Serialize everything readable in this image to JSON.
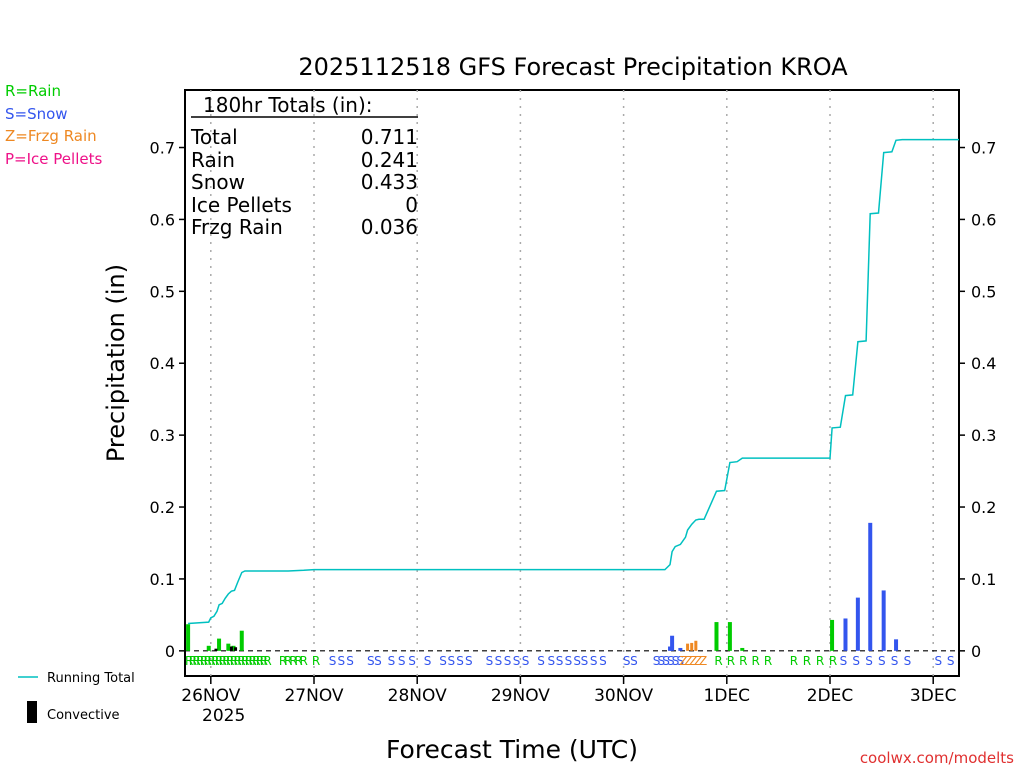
{
  "chart_data": {
    "type": "bar",
    "title": "2025112518 GFS Forecast Precipitation KROA",
    "xlabel": "Forecast Time (UTC)",
    "ylabel": "Precipitation (in)",
    "ylim": [
      -0.035,
      0.78
    ],
    "yticks": [
      0,
      0.1,
      0.2,
      0.3,
      0.4,
      0.5,
      0.6,
      0.7
    ],
    "ytick_labels": [
      "0",
      "0.1",
      "0.2",
      "0.3",
      "0.4",
      "0.5",
      "0.6",
      "0.7"
    ],
    "x_unit": "days since 26NOV 00Z",
    "xlim": [
      -0.25,
      7.25
    ],
    "x_ticks": [
      {
        "x": 0,
        "label": "26NOV"
      },
      {
        "x": 1,
        "label": "27NOV"
      },
      {
        "x": 2,
        "label": "28NOV"
      },
      {
        "x": 3,
        "label": "29NOV"
      },
      {
        "x": 4,
        "label": "30NOV"
      },
      {
        "x": 5,
        "label": "1DEC"
      },
      {
        "x": 6,
        "label": "2DEC"
      },
      {
        "x": 7,
        "label": "3DEC"
      }
    ],
    "year_label": "2025",
    "legend": [
      {
        "label": "R=Rain",
        "color": "#00cc00"
      },
      {
        "label": "S=Snow",
        "color": "#3355ee"
      },
      {
        "label": "Z=Frzg Rain",
        "color": "#ee8822"
      },
      {
        "label": "P=Ice Pellets",
        "color": "#ee1188"
      }
    ],
    "bottom_legend": [
      {
        "label": "Running Total",
        "color": "#00c0c0"
      },
      {
        "label": "Convective",
        "color": "#000000"
      }
    ],
    "totals": {
      "header": "180hr Totals (in):",
      "rows": [
        {
          "label": "Total",
          "value": "0.711"
        },
        {
          "label": "Rain",
          "value": "0.241"
        },
        {
          "label": "Snow",
          "value": "0.433"
        },
        {
          "label": "Ice Pellets",
          "value": "0"
        },
        {
          "label": "Frzg Rain",
          "value": "0.036"
        }
      ]
    },
    "bars": [
      {
        "x": -0.22,
        "value": 0.037,
        "ptype": "rain"
      },
      {
        "x": -0.02,
        "value": 0.007,
        "ptype": "rain"
      },
      {
        "x": 0.08,
        "value": 0.017,
        "ptype": "rain"
      },
      {
        "x": 0.17,
        "value": 0.01,
        "ptype": "rain"
      },
      {
        "x": 0.22,
        "value": 0.007,
        "ptype": "rain"
      },
      {
        "x": 0.3,
        "value": 0.028,
        "ptype": "rain"
      },
      {
        "x": 4.45,
        "value": 0.006,
        "ptype": "snow"
      },
      {
        "x": 4.47,
        "value": 0.021,
        "ptype": "snow"
      },
      {
        "x": 4.55,
        "value": 0.004,
        "ptype": "snow"
      },
      {
        "x": 4.62,
        "value": 0.01,
        "ptype": "frzg"
      },
      {
        "x": 4.66,
        "value": 0.011,
        "ptype": "frzg"
      },
      {
        "x": 4.7,
        "value": 0.014,
        "ptype": "frzg"
      },
      {
        "x": 4.9,
        "value": 0.04,
        "ptype": "rain"
      },
      {
        "x": 5.03,
        "value": 0.04,
        "ptype": "rain"
      },
      {
        "x": 5.15,
        "value": 0.004,
        "ptype": "rain"
      },
      {
        "x": 6.02,
        "value": 0.043,
        "ptype": "rain"
      },
      {
        "x": 6.15,
        "value": 0.045,
        "ptype": "snow"
      },
      {
        "x": 6.27,
        "value": 0.074,
        "ptype": "snow"
      },
      {
        "x": 6.39,
        "value": 0.178,
        "ptype": "snow"
      },
      {
        "x": 6.52,
        "value": 0.084,
        "ptype": "snow"
      },
      {
        "x": 6.64,
        "value": 0.016,
        "ptype": "snow"
      }
    ],
    "convective": [
      {
        "x": 0.05,
        "value": 0.003
      },
      {
        "x": 0.2,
        "value": 0.006
      },
      {
        "x": 0.24,
        "value": 0.005
      }
    ],
    "running_total": {
      "x": [
        -0.22,
        -0.02,
        0.0,
        0.03,
        0.06,
        0.08,
        0.11,
        0.14,
        0.17,
        0.2,
        0.23,
        0.26,
        0.3,
        0.33,
        0.75,
        0.9,
        1.0,
        4.4,
        4.45,
        4.47,
        4.5,
        4.55,
        4.6,
        4.62,
        4.66,
        4.7,
        4.73,
        4.78,
        4.9,
        4.98,
        5.03,
        5.1,
        5.15,
        6.0,
        6.02,
        6.1,
        6.15,
        6.22,
        6.27,
        6.35,
        6.39,
        6.47,
        6.52,
        6.6,
        6.64,
        6.7,
        7.25
      ],
      "y": [
        0.038,
        0.04,
        0.046,
        0.048,
        0.055,
        0.064,
        0.066,
        0.073,
        0.079,
        0.083,
        0.084,
        0.095,
        0.109,
        0.111,
        0.111,
        0.112,
        0.113,
        0.113,
        0.12,
        0.138,
        0.145,
        0.148,
        0.158,
        0.168,
        0.176,
        0.182,
        0.183,
        0.183,
        0.222,
        0.223,
        0.262,
        0.263,
        0.268,
        0.268,
        0.31,
        0.311,
        0.355,
        0.356,
        0.43,
        0.431,
        0.608,
        0.609,
        0.693,
        0.694,
        0.71,
        0.711,
        0.711
      ]
    },
    "ptype_markers": [
      {
        "x0": -0.21,
        "x1": 0.55,
        "char": "R",
        "count": 22,
        "color": "#00cc00"
      },
      {
        "x0": 0.7,
        "x1": 0.9,
        "char": "R",
        "count": 5,
        "color": "#00cc00"
      },
      {
        "x0": 1.02,
        "x1": 1.02,
        "char": "R",
        "count": 1,
        "color": "#00cc00"
      },
      {
        "x0": 1.18,
        "x1": 1.35,
        "char": "S",
        "count": 3,
        "color": "#3355ee"
      },
      {
        "x0": 1.55,
        "x1": 1.62,
        "char": "S",
        "count": 2,
        "color": "#3355ee"
      },
      {
        "x0": 1.75,
        "x1": 1.95,
        "char": "S",
        "count": 3,
        "color": "#3355ee"
      },
      {
        "x0": 2.1,
        "x1": 2.25,
        "char": "S",
        "count": 2,
        "color": "#3355ee"
      },
      {
        "x0": 2.33,
        "x1": 2.5,
        "char": "S",
        "count": 3,
        "color": "#3355ee"
      },
      {
        "x0": 2.7,
        "x1": 3.05,
        "char": "S",
        "count": 5,
        "color": "#3355ee"
      },
      {
        "x0": 3.2,
        "x1": 3.3,
        "char": "S",
        "count": 2,
        "color": "#3355ee"
      },
      {
        "x0": 3.38,
        "x1": 3.55,
        "char": "S",
        "count": 3,
        "color": "#3355ee"
      },
      {
        "x0": 3.62,
        "x1": 3.8,
        "char": "S",
        "count": 3,
        "color": "#3355ee"
      },
      {
        "x0": 4.03,
        "x1": 4.1,
        "char": "S",
        "count": 2,
        "color": "#3355ee"
      },
      {
        "x0": 4.32,
        "x1": 4.55,
        "char": "S",
        "count": 6,
        "color": "#3355ee"
      },
      {
        "x0": 4.58,
        "x1": 4.77,
        "char": "Z",
        "count": 5,
        "color": "#ee8822"
      },
      {
        "x0": 4.92,
        "x1": 5.4,
        "char": "R",
        "count": 5,
        "color": "#00cc00"
      },
      {
        "x0": 5.65,
        "x1": 6.03,
        "char": "R",
        "count": 4,
        "color": "#00cc00"
      },
      {
        "x0": 6.13,
        "x1": 6.75,
        "char": "S",
        "count": 6,
        "color": "#3355ee"
      },
      {
        "x0": 7.05,
        "x1": 7.17,
        "char": "S",
        "count": 2,
        "color": "#3355ee"
      }
    ],
    "credit": "coolwx.com/modelts"
  }
}
